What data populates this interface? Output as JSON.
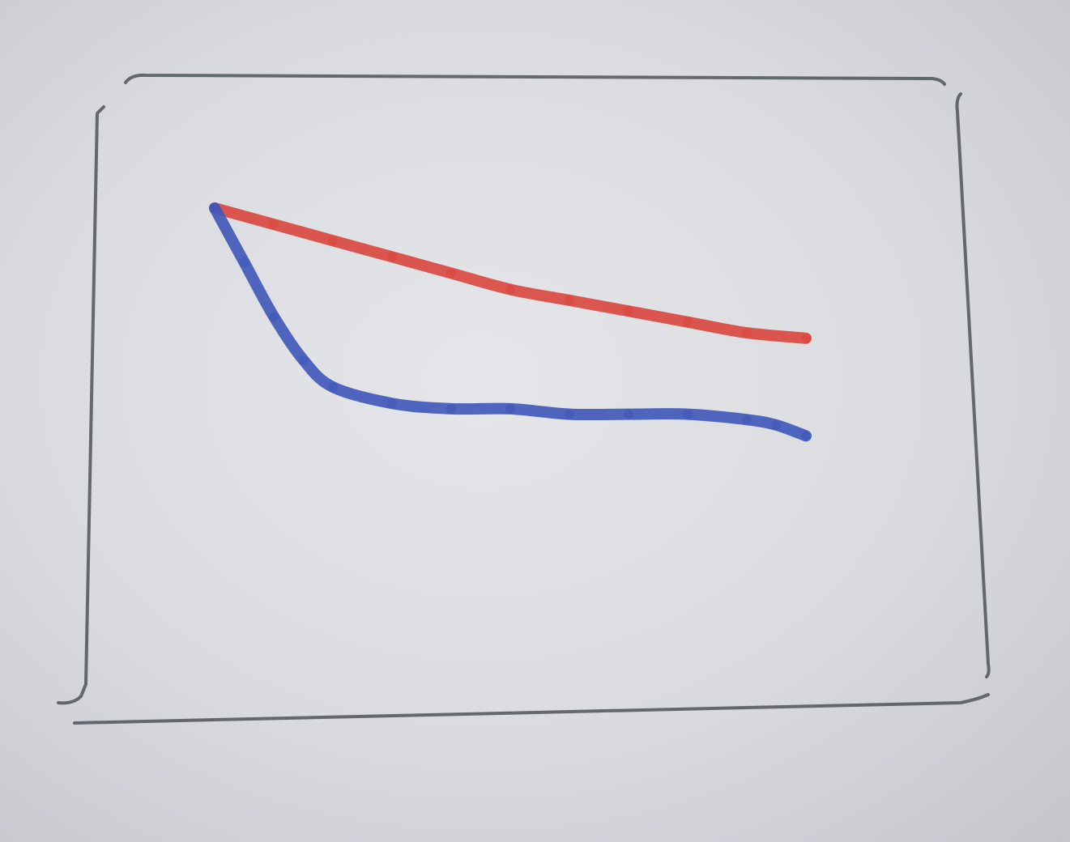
{
  "chart_data": {
    "type": "line",
    "title": "",
    "xlabel": "",
    "ylabel": "",
    "grid": false,
    "legend": "none",
    "xlim": [
      0,
      10
    ],
    "ylim": [
      0,
      10
    ],
    "series": [
      {
        "color": "#d9463d",
        "x": [
          0,
          1,
          2,
          3,
          4,
          5,
          6,
          7,
          8,
          9,
          10
        ],
        "y": [
          9.0,
          8.7,
          8.4,
          8.1,
          7.8,
          7.5,
          7.3,
          7.1,
          6.9,
          6.7,
          6.6
        ]
      },
      {
        "color": "#3f56b8",
        "x": [
          0,
          0.5,
          1,
          1.5,
          2,
          3,
          4,
          5,
          6,
          7,
          8,
          9,
          9.5,
          10
        ],
        "y": [
          9.0,
          8.0,
          7.0,
          6.2,
          5.7,
          5.4,
          5.3,
          5.3,
          5.2,
          5.2,
          5.2,
          5.1,
          5.0,
          4.8
        ]
      }
    ],
    "colors": {
      "frame": "#4e5558",
      "paper": "#dadce0"
    }
  }
}
